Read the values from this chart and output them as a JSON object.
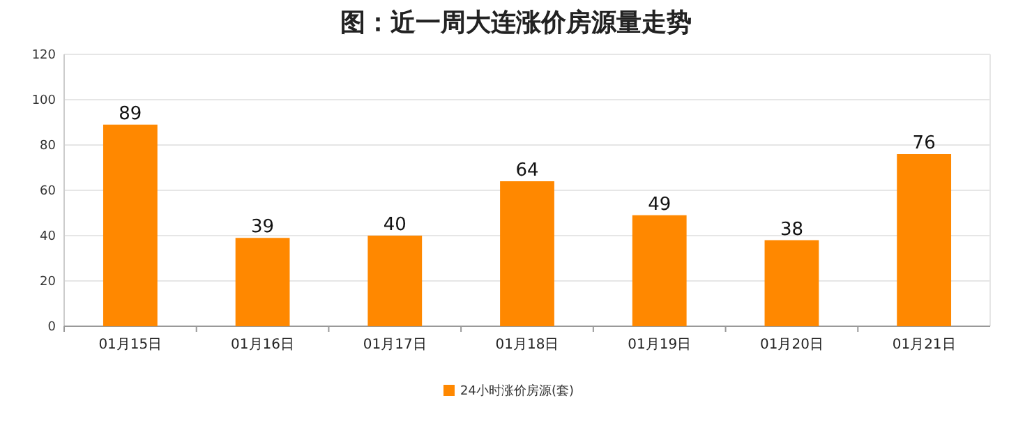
{
  "chart_data": {
    "type": "bar",
    "title": "图：近一周大连涨价房源量走势",
    "categories": [
      "01月15日",
      "01月16日",
      "01月17日",
      "01月18日",
      "01月19日",
      "01月20日",
      "01月21日"
    ],
    "series": [
      {
        "name": "24小时涨价房源(套)",
        "color": "#ff8800",
        "values": [
          89,
          39,
          40,
          64,
          49,
          38,
          76
        ]
      }
    ],
    "ylim": [
      0,
      120
    ],
    "yticks": [
      0,
      20,
      40,
      60,
      80,
      100,
      120
    ],
    "grid": "y",
    "legend": "bottom",
    "data_labels": true
  }
}
